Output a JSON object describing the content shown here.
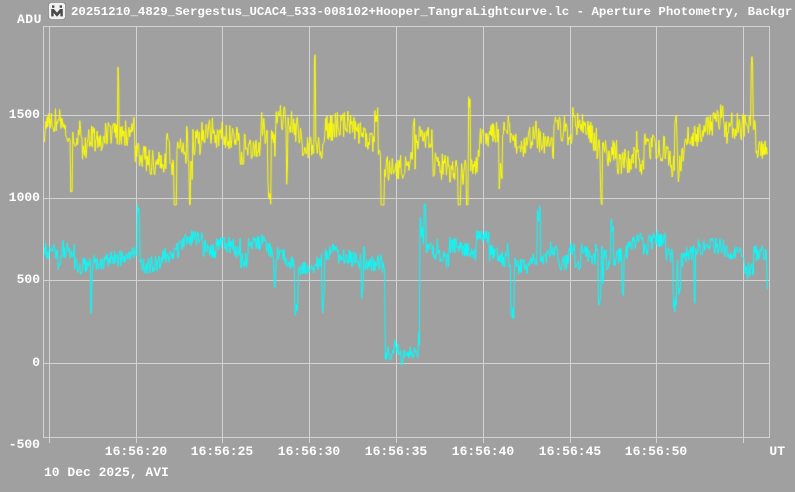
{
  "window": {
    "title": "20251210_4829_Sergestus_UCAC4_533-008102+Hooper_TangraLightcurve.lc - Aperture Photometry, Backgr",
    "app_icon": "tangra-app-icon"
  },
  "colors": {
    "background": "#A0A0A0",
    "gridline": "#D3D3D3",
    "frame": "#D3D3D3",
    "label_text": "#FFFFFF",
    "series_yellow": "#FFFF00",
    "series_cyan": "#00FFFF"
  },
  "chart_data": {
    "type": "line",
    "title": "20251210_4829_Sergestus_UCAC4_533-008102+Hooper_TangraLightcurve.lc - Aperture Photometry, Backgr",
    "ylabel": "ADU",
    "x_unit_label": "UT",
    "date_label": "10 Dec 2025, AVI",
    "grid": true,
    "legend": "none",
    "y_ticks": [
      {
        "label": "1500",
        "value": 1500
      },
      {
        "label": "1000",
        "value": 1000
      },
      {
        "label": "500",
        "value": 500
      },
      {
        "label": "0",
        "value": 0
      },
      {
        "label": "-500",
        "value": -500
      }
    ],
    "y_gridline_values": [
      1500,
      1000,
      500,
      0
    ],
    "x_ticks": [
      {
        "label": "16:56:20",
        "t_s": 20
      },
      {
        "label": "16:56:25",
        "t_s": 25
      },
      {
        "label": "16:56:30",
        "t_s": 30
      },
      {
        "label": "16:56:35",
        "t_s": 35
      },
      {
        "label": "16:56:40",
        "t_s": 40
      },
      {
        "label": "16:56:45",
        "t_s": 45
      },
      {
        "label": "16:56:50",
        "t_s": 50
      }
    ],
    "x_gridline_times_s": [
      15,
      20,
      25,
      30,
      35,
      40,
      45,
      50,
      55
    ],
    "x_range_s": [
      14.75,
      56.4
    ],
    "ylim_adu": [
      -455,
      2040
    ],
    "sample_step_s": 0.04,
    "series": [
      {
        "id": "comparison-star-lightcurve",
        "color": "#FFFF00",
        "approx_mean_adu": 1330,
        "approx_range_adu": [
          955,
          1875
        ],
        "slow_amp": 65,
        "noise_amp": 150,
        "spike_prob": 0.02,
        "spike_up_frac": 0.55,
        "seed": 20251210
      },
      {
        "id": "occulted-star-lightcurve",
        "color": "#00FFFF",
        "approx_mean_adu": 655,
        "approx_range_adu": [
          -65,
          960
        ],
        "slow_amp": 45,
        "noise_amp": 95,
        "spike_prob": 0.015,
        "spike_up_frac": 0.4,
        "seed": 48290,
        "occultation_dip": {
          "start_ut": "16:56:34.3",
          "end_ut": "16:56:36.4",
          "start_s": 34.35,
          "end_s": 36.38,
          "approx_level_adu": 90,
          "noise_amp": 85,
          "range_adu": [
            -65,
            335
          ]
        }
      }
    ]
  }
}
